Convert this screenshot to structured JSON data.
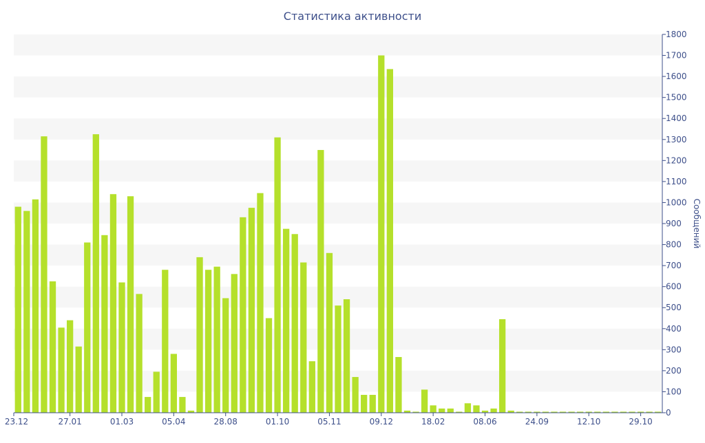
{
  "chart_data": {
    "type": "bar",
    "title": "Статистика активности",
    "ylabel": "Сообщений",
    "xlabel": "",
    "ylim": [
      0,
      1800
    ],
    "y_ticks": [
      0,
      100,
      200,
      300,
      400,
      500,
      600,
      700,
      800,
      900,
      1000,
      1100,
      1200,
      1300,
      1400,
      1500,
      1600,
      1700,
      1800
    ],
    "x_tick_labels": [
      {
        "index": 0,
        "label": "23.12"
      },
      {
        "index": 6,
        "label": "27.01"
      },
      {
        "index": 12,
        "label": "01.03"
      },
      {
        "index": 18,
        "label": "05.04"
      },
      {
        "index": 24,
        "label": "28.08"
      },
      {
        "index": 30,
        "label": "01.10"
      },
      {
        "index": 36,
        "label": "05.11"
      },
      {
        "index": 42,
        "label": "09.12"
      },
      {
        "index": 48,
        "label": "18.02"
      },
      {
        "index": 54,
        "label": "08.06"
      },
      {
        "index": 60,
        "label": "24.09"
      },
      {
        "index": 66,
        "label": "12.10"
      },
      {
        "index": 72,
        "label": "29.10"
      }
    ],
    "values": [
      980,
      960,
      1015,
      1315,
      625,
      405,
      440,
      315,
      810,
      1325,
      845,
      1040,
      620,
      1030,
      565,
      75,
      195,
      680,
      280,
      75,
      10,
      740,
      680,
      695,
      545,
      660,
      930,
      975,
      1045,
      450,
      1310,
      875,
      850,
      715,
      245,
      1250,
      760,
      510,
      540,
      170,
      85,
      85,
      1700,
      1635,
      265,
      10,
      5,
      110,
      35,
      20,
      20,
      5,
      45,
      35,
      10,
      20,
      445,
      10,
      5,
      5,
      5,
      5,
      5,
      5,
      5,
      5,
      5,
      5,
      5,
      5,
      5,
      5,
      5,
      5,
      5
    ],
    "bar_color": "#b5e02b",
    "band_color": "#f6f6f6",
    "axis_color": "#3d4f8a",
    "grid": "alternating horizontal bands",
    "y_axis_side": "right"
  }
}
